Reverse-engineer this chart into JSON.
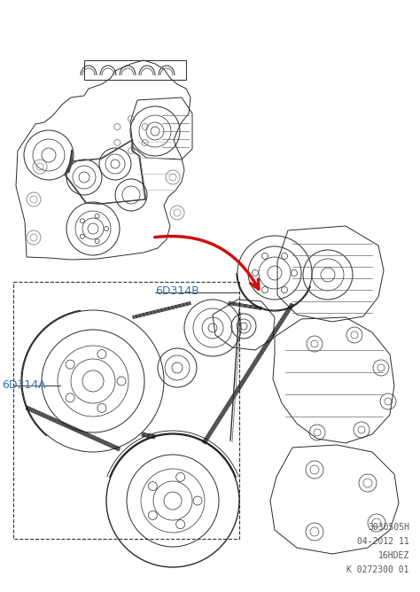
{
  "background_color": "#f5f5f5",
  "figure_width": 4.74,
  "figure_height": 6.68,
  "dpi": 100,
  "label_6D314B": "6D314B",
  "label_6D314A": "6D314A",
  "label_color": "#3a6fad",
  "footer_lines": [
    "3030505H",
    "04-2012 11",
    "16HDEZ",
    "K 0272300 01"
  ],
  "footer_color": "#555555",
  "footer_fontsize": 7.0,
  "arrow_color": "#cc1111",
  "line_color": "#2a2a2a",
  "light_gray": "#aaaaaa",
  "mid_gray": "#666666"
}
